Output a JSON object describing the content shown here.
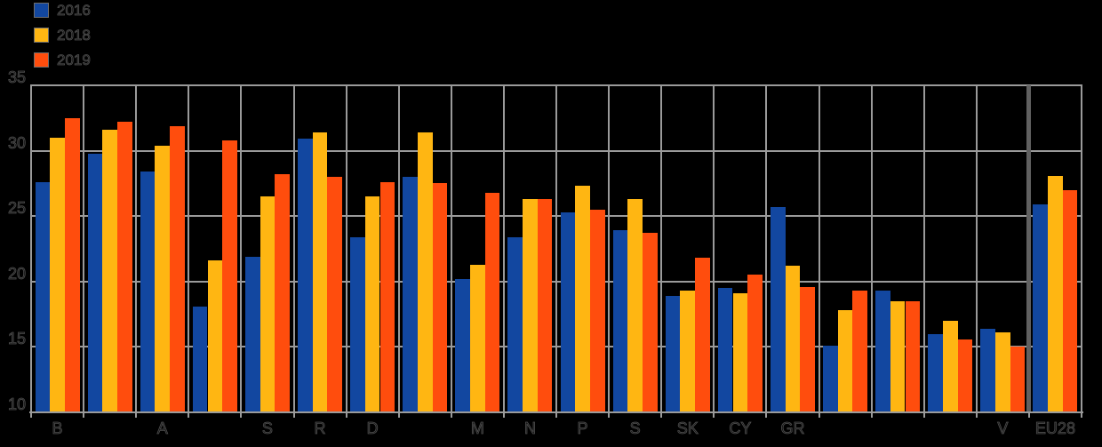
{
  "page": {
    "background": "#000000"
  },
  "colors": {
    "gridline": "#9a9a9a",
    "axis_line": "#9a9a9a",
    "separator": "#606060",
    "ghost_text": "#4e4e4e",
    "series_blue": "#1247A0",
    "series_yellow": "#FFB612",
    "series_orange": "#FF4D0D"
  },
  "chart_data": {
    "type": "bar",
    "title": "",
    "xlabel": "",
    "ylabel": "",
    "ylim": [
      10,
      35
    ],
    "yticks": [
      35,
      30,
      25,
      20,
      15,
      10
    ],
    "grid": true,
    "legend_position": "top-left",
    "separator_before_last_group": true,
    "categories": [
      "B",
      "",
      "A",
      "",
      "S",
      "R",
      "D",
      "",
      "M",
      "N",
      "P",
      "S",
      "SK",
      "CY",
      "GR",
      "",
      "",
      "",
      "V",
      "EU28"
    ],
    "series": [
      {
        "name": "2016",
        "color": "#1247A0",
        "values": [
          27.6,
          29.8,
          28.4,
          18.1,
          21.9,
          30.9,
          23.4,
          28.0,
          20.2,
          23.4,
          25.3,
          23.9,
          18.9,
          19.5,
          25.7,
          15.1,
          19.3,
          16.0,
          16.4,
          25.9
        ]
      },
      {
        "name": "2018",
        "color": "#FFB612",
        "values": [
          31.0,
          31.6,
          30.4,
          21.6,
          26.5,
          31.4,
          26.5,
          31.4,
          21.3,
          26.3,
          27.3,
          26.3,
          19.3,
          19.1,
          21.2,
          17.8,
          18.5,
          17.0,
          16.1,
          28.1
        ]
      },
      {
        "name": "2019",
        "color": "#FF4D0D",
        "values": [
          32.5,
          32.2,
          31.9,
          30.8,
          28.2,
          28.0,
          27.6,
          27.5,
          26.8,
          26.3,
          25.5,
          23.7,
          21.8,
          20.5,
          19.6,
          19.3,
          18.5,
          15.6,
          15.0,
          27.0
        ]
      }
    ]
  }
}
